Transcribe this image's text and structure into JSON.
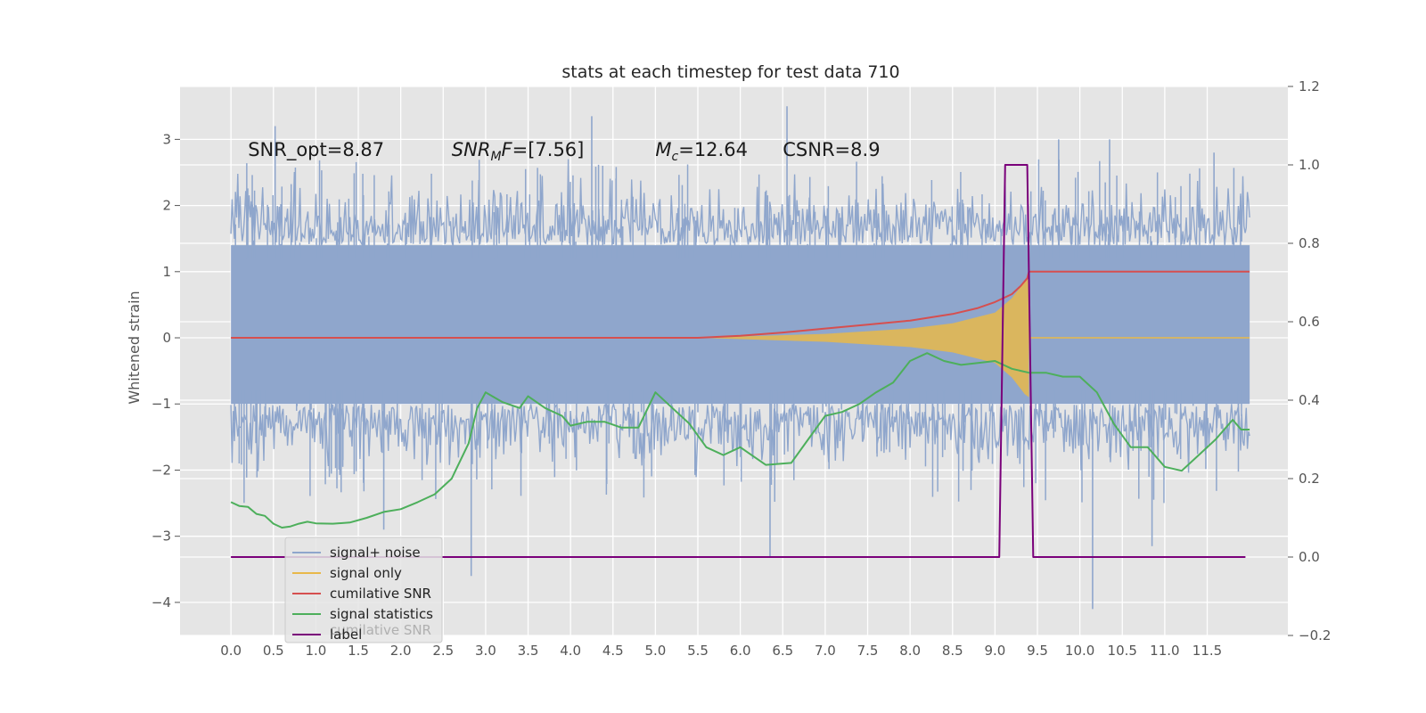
{
  "colors": {
    "plot_background": "#e5e5e5",
    "grid": "#ffffff",
    "axis_text": "#555555",
    "signal_noise": "#8fa6cc",
    "signal_only": "#e8b84a",
    "cumulative_snr": "#d64f4f",
    "signal_statistics": "#4daf5b",
    "label": "#7a007a"
  },
  "chart_data": {
    "type": "line",
    "title": "stats at each timestep for test data 710",
    "xlabel": "",
    "ylabel": "Whitened strain",
    "ylabel_right": "",
    "xlim": [
      -0.6,
      12.45
    ],
    "ylim": [
      -4.5,
      3.8
    ],
    "ylim_right": [
      -0.2,
      1.2
    ],
    "x_ticks": [
      "0.0",
      "0.5",
      "1.0",
      "1.5",
      "2.0",
      "2.5",
      "3.0",
      "3.5",
      "4.0",
      "4.5",
      "5.0",
      "5.5",
      "6.0",
      "6.5",
      "7.0",
      "7.5",
      "8.0",
      "8.5",
      "9.0",
      "9.5",
      "10.0",
      "10.5",
      "11.0",
      "11.5"
    ],
    "y_ticks_left": [
      "3",
      "2",
      "1",
      "0",
      "−1",
      "−2",
      "−3",
      "−4"
    ],
    "y_ticks_right": [
      "1.2",
      "1.0",
      "0.8",
      "0.6",
      "0.4",
      "0.2",
      "0.0",
      "−0.2"
    ],
    "grid": true,
    "legend_position": "lower-left",
    "annotations": [
      {
        "text": "SNR_opt=8.87",
        "x": 0.2,
        "y": 2.75
      },
      {
        "text_main": "SNR",
        "text_sub": "M",
        "text_rest": "F=[7.56]",
        "x": 2.6,
        "y": 2.75
      },
      {
        "text_main": "M",
        "text_sub": "c",
        "text_rest": "=12.64",
        "x": 5.0,
        "y": 2.75
      },
      {
        "text": "CSNR=8.9",
        "x": 6.5,
        "y": 2.75
      }
    ],
    "series": [
      {
        "name": "signal+ noise",
        "axis": "left",
        "style": "dense_noise",
        "x_range": [
          0.0,
          12.0
        ],
        "core_amplitude": [
          -1.0,
          1.4
        ],
        "peak_range": [
          -2.5,
          2.7
        ],
        "outliers": [
          {
            "x": 0.52,
            "y": 3.2
          },
          {
            "x": 2.83,
            "y": -3.6
          },
          {
            "x": 4.25,
            "y": 3.35
          },
          {
            "x": 6.35,
            "y": -3.3
          },
          {
            "x": 6.55,
            "y": 3.5
          },
          {
            "x": 9.75,
            "y": 3.0
          },
          {
            "x": 10.35,
            "y": 3.0
          },
          {
            "x": 10.15,
            "y": -4.1
          },
          {
            "x": 10.85,
            "y": -3.15
          },
          {
            "x": 11.58,
            "y": 2.8
          },
          {
            "x": 1.8,
            "y": -2.9
          },
          {
            "x": 6.0,
            "y": 1.3
          }
        ]
      },
      {
        "name": "signal only",
        "axis": "left",
        "style": "chirp",
        "x_range": [
          5.5,
          12.0
        ],
        "merger_x": 9.4,
        "envelope": [
          {
            "x": 5.5,
            "y": 0.0
          },
          {
            "x": 7.0,
            "y": 0.06
          },
          {
            "x": 8.0,
            "y": 0.14
          },
          {
            "x": 8.5,
            "y": 0.22
          },
          {
            "x": 9.0,
            "y": 0.38
          },
          {
            "x": 9.2,
            "y": 0.6
          },
          {
            "x": 9.35,
            "y": 0.85
          },
          {
            "x": 9.4,
            "y": 0.9
          }
        ]
      },
      {
        "name": "cumilative SNR",
        "axis": "left",
        "style": "line",
        "points": [
          {
            "x": 0.0,
            "y": 0.0
          },
          {
            "x": 5.5,
            "y": 0.0
          },
          {
            "x": 6.0,
            "y": 0.03
          },
          {
            "x": 6.5,
            "y": 0.08
          },
          {
            "x": 7.0,
            "y": 0.14
          },
          {
            "x": 7.5,
            "y": 0.2
          },
          {
            "x": 8.0,
            "y": 0.26
          },
          {
            "x": 8.5,
            "y": 0.36
          },
          {
            "x": 8.8,
            "y": 0.45
          },
          {
            "x": 9.0,
            "y": 0.54
          },
          {
            "x": 9.2,
            "y": 0.66
          },
          {
            "x": 9.3,
            "y": 0.78
          },
          {
            "x": 9.38,
            "y": 0.9
          },
          {
            "x": 9.4,
            "y": 1.0
          },
          {
            "x": 12.0,
            "y": 1.0
          }
        ]
      },
      {
        "name": "signal statistics",
        "axis": "right",
        "style": "line",
        "points": [
          {
            "x": 0.0,
            "y": 0.14
          },
          {
            "x": 0.1,
            "y": 0.13
          },
          {
            "x": 0.2,
            "y": 0.128
          },
          {
            "x": 0.3,
            "y": 0.11
          },
          {
            "x": 0.4,
            "y": 0.105
          },
          {
            "x": 0.5,
            "y": 0.085
          },
          {
            "x": 0.6,
            "y": 0.075
          },
          {
            "x": 0.7,
            "y": 0.078
          },
          {
            "x": 0.8,
            "y": 0.085
          },
          {
            "x": 0.9,
            "y": 0.09
          },
          {
            "x": 1.0,
            "y": 0.086
          },
          {
            "x": 1.2,
            "y": 0.085
          },
          {
            "x": 1.4,
            "y": 0.088
          },
          {
            "x": 1.6,
            "y": 0.1
          },
          {
            "x": 1.8,
            "y": 0.115
          },
          {
            "x": 2.0,
            "y": 0.122
          },
          {
            "x": 2.2,
            "y": 0.14
          },
          {
            "x": 2.4,
            "y": 0.16
          },
          {
            "x": 2.6,
            "y": 0.2
          },
          {
            "x": 2.8,
            "y": 0.29
          },
          {
            "x": 2.9,
            "y": 0.38
          },
          {
            "x": 3.0,
            "y": 0.42
          },
          {
            "x": 3.2,
            "y": 0.395
          },
          {
            "x": 3.4,
            "y": 0.38
          },
          {
            "x": 3.5,
            "y": 0.41
          },
          {
            "x": 3.7,
            "y": 0.38
          },
          {
            "x": 3.9,
            "y": 0.36
          },
          {
            "x": 4.0,
            "y": 0.335
          },
          {
            "x": 4.2,
            "y": 0.345
          },
          {
            "x": 4.4,
            "y": 0.345
          },
          {
            "x": 4.6,
            "y": 0.33
          },
          {
            "x": 4.8,
            "y": 0.33
          },
          {
            "x": 5.0,
            "y": 0.42
          },
          {
            "x": 5.2,
            "y": 0.38
          },
          {
            "x": 5.4,
            "y": 0.34
          },
          {
            "x": 5.6,
            "y": 0.28
          },
          {
            "x": 5.8,
            "y": 0.26
          },
          {
            "x": 6.0,
            "y": 0.28
          },
          {
            "x": 6.3,
            "y": 0.235
          },
          {
            "x": 6.6,
            "y": 0.24
          },
          {
            "x": 6.8,
            "y": 0.3
          },
          {
            "x": 7.0,
            "y": 0.36
          },
          {
            "x": 7.2,
            "y": 0.37
          },
          {
            "x": 7.4,
            "y": 0.39
          },
          {
            "x": 7.6,
            "y": 0.42
          },
          {
            "x": 7.8,
            "y": 0.445
          },
          {
            "x": 8.0,
            "y": 0.5
          },
          {
            "x": 8.2,
            "y": 0.52
          },
          {
            "x": 8.4,
            "y": 0.5
          },
          {
            "x": 8.6,
            "y": 0.49
          },
          {
            "x": 8.8,
            "y": 0.495
          },
          {
            "x": 9.0,
            "y": 0.5
          },
          {
            "x": 9.2,
            "y": 0.48
          },
          {
            "x": 9.4,
            "y": 0.47
          },
          {
            "x": 9.6,
            "y": 0.47
          },
          {
            "x": 9.8,
            "y": 0.46
          },
          {
            "x": 10.0,
            "y": 0.46
          },
          {
            "x": 10.2,
            "y": 0.42
          },
          {
            "x": 10.4,
            "y": 0.34
          },
          {
            "x": 10.6,
            "y": 0.28
          },
          {
            "x": 10.8,
            "y": 0.28
          },
          {
            "x": 11.0,
            "y": 0.23
          },
          {
            "x": 11.2,
            "y": 0.22
          },
          {
            "x": 11.4,
            "y": 0.26
          },
          {
            "x": 11.6,
            "y": 0.3
          },
          {
            "x": 11.8,
            "y": 0.35
          },
          {
            "x": 11.9,
            "y": 0.325
          },
          {
            "x": 12.0,
            "y": 0.325
          }
        ]
      },
      {
        "name": "label",
        "axis": "right",
        "style": "line",
        "points": [
          {
            "x": 0.0,
            "y": 0.0
          },
          {
            "x": 9.05,
            "y": 0.0
          },
          {
            "x": 9.12,
            "y": 1.0
          },
          {
            "x": 9.38,
            "y": 1.0
          },
          {
            "x": 9.45,
            "y": 0.0
          },
          {
            "x": 11.95,
            "y": 0.0
          }
        ]
      }
    ],
    "legend_overlap_text": "cumilative SNR"
  }
}
